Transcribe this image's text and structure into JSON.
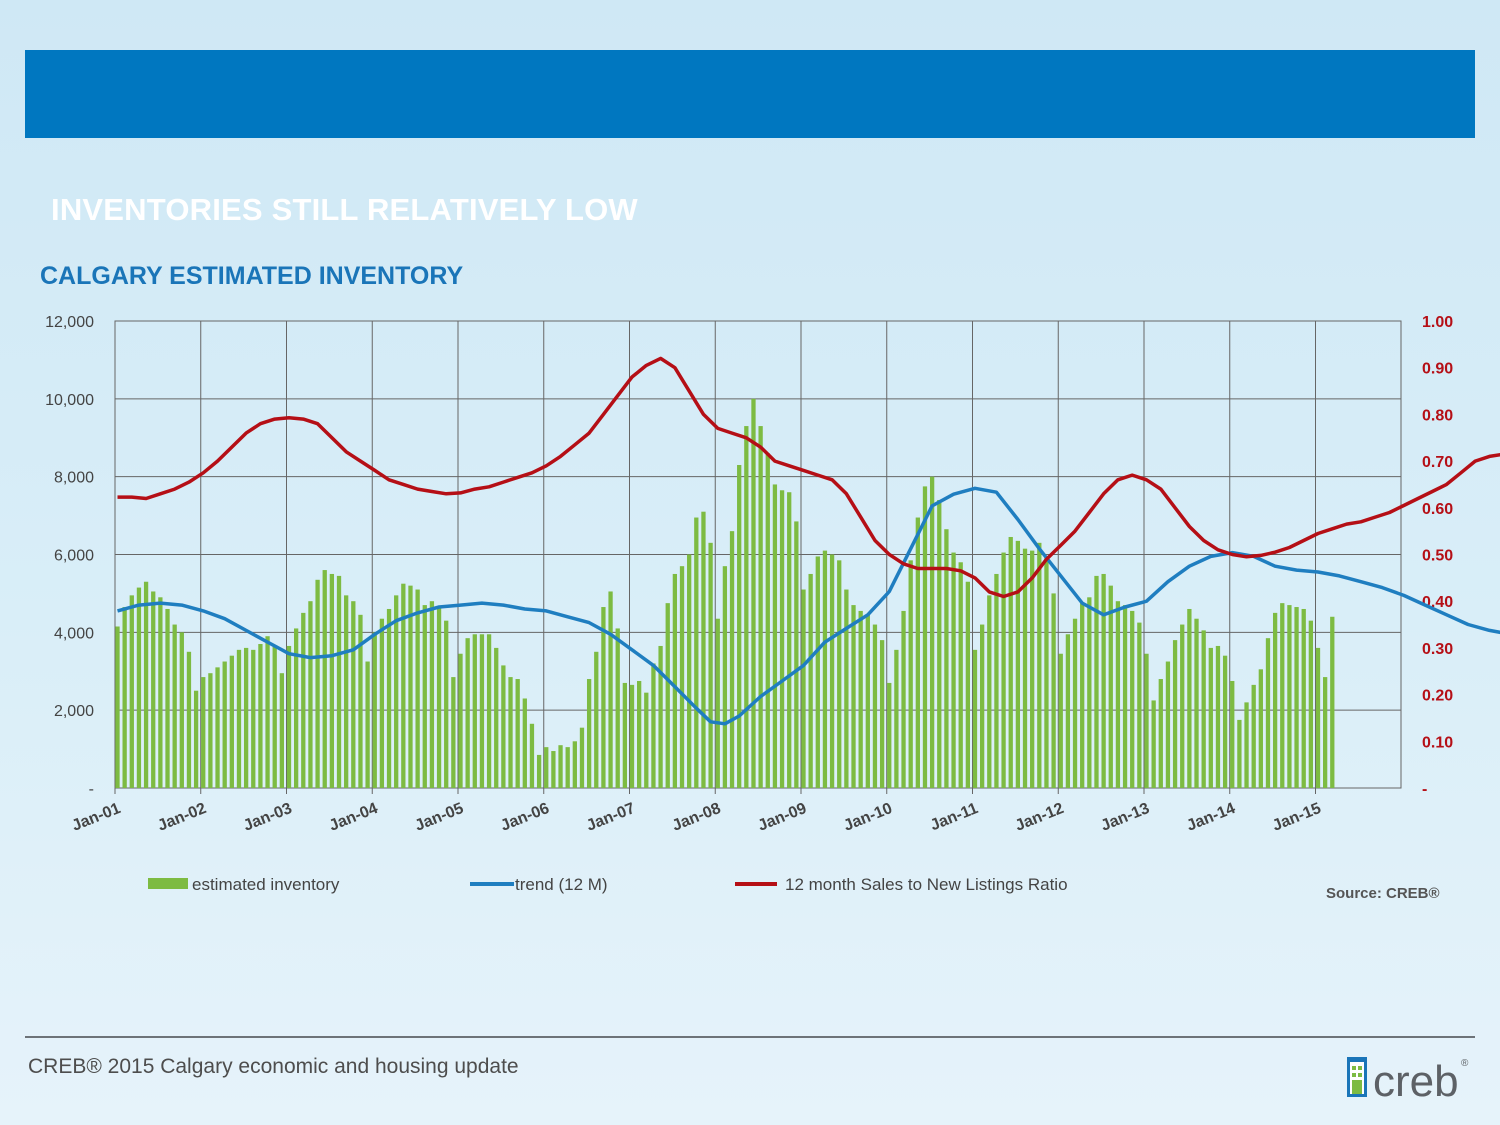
{
  "header": {
    "slide_title": "INVENTORIES STILL RELATIVELY LOW",
    "chart_title": "CALGARY ESTIMATED INVENTORY"
  },
  "footer": {
    "text": "CREB® 2015 Calgary economic and housing update",
    "source": "Source: CREB®",
    "logo_text": "creb",
    "logo_mark": "®"
  },
  "colors": {
    "band": "#0077c0",
    "bars": "#7dbb42",
    "trend": "#1f7ec0",
    "ratio": "#b50f16"
  },
  "chart_data": {
    "type": "bar",
    "title": "CALGARY ESTIMATED INVENTORY",
    "x_tick_labels": [
      "Jan-01",
      "Jan-02",
      "Jan-03",
      "Jan-04",
      "Jan-05",
      "Jan-06",
      "Jan-07",
      "Jan-08",
      "Jan-09",
      "Jan-10",
      "Jan-11",
      "Jan-12",
      "Jan-13",
      "Jan-14",
      "Jan-15"
    ],
    "y_left": {
      "range": [
        0,
        12000
      ],
      "tick_values": [
        0,
        2000,
        4000,
        6000,
        8000,
        10000,
        12000
      ],
      "tick_labels": [
        "-",
        "2,000",
        "4,000",
        "6,000",
        "8,000",
        "10,000",
        "12,000"
      ]
    },
    "y_right": {
      "range": [
        0,
        1.0
      ],
      "tick_values": [
        0,
        0.1,
        0.2,
        0.3,
        0.4,
        0.5,
        0.6,
        0.7,
        0.8,
        0.9,
        1.0
      ],
      "tick_labels": [
        "-",
        "0.10",
        "0.20",
        "0.30",
        "0.40",
        "0.50",
        "0.60",
        "0.70",
        "0.80",
        "0.90",
        "1.00"
      ]
    },
    "grid": true,
    "legend_position": "bottom",
    "series": [
      {
        "name": "estimated inventory",
        "type": "bar",
        "axis": "left",
        "values": [
          4150,
          4650,
          4950,
          5150,
          5300,
          5050,
          4900,
          4600,
          4200,
          4000,
          3500,
          2500,
          2850,
          2950,
          3100,
          3250,
          3400,
          3550,
          3600,
          3550,
          3700,
          3900,
          3650,
          2950,
          3650,
          4100,
          4500,
          4800,
          5350,
          5600,
          5500,
          5450,
          4950,
          4800,
          4450,
          3250,
          4000,
          4350,
          4600,
          4950,
          5250,
          5200,
          5100,
          4700,
          4800,
          4650,
          4300,
          2850,
          3450,
          3850,
          3950,
          3950,
          3950,
          3600,
          3150,
          2850,
          2800,
          2300,
          1650,
          850,
          1050,
          950,
          1100,
          1050,
          1200,
          1550,
          2800,
          3500,
          4650,
          5050,
          4100,
          2700,
          2650,
          2750,
          2450,
          3200,
          3650,
          4750,
          5500,
          5700,
          6000,
          6950,
          7100,
          6300,
          4350,
          5700,
          6600,
          8300,
          9300,
          10000,
          9300,
          8600,
          7800,
          7650,
          7600,
          6850,
          5100,
          5500,
          5950,
          6100,
          6000,
          5850,
          5100,
          4700,
          4550,
          4450,
          4200,
          3800,
          2700,
          3550,
          4550,
          5850,
          6950,
          7750,
          8000,
          7400,
          6650,
          6050,
          5800,
          5300,
          3550,
          4200,
          4950,
          5500,
          6050,
          6450,
          6350,
          6150,
          6100,
          6300,
          5950,
          5000,
          3450,
          3950,
          4350,
          4750,
          4900,
          5450,
          5500,
          5200,
          4800,
          4700,
          4550,
          4250,
          3450,
          2250,
          2800,
          3250,
          3800,
          4200,
          4600,
          4350,
          4050,
          3600,
          3650,
          3400,
          2750,
          1750,
          2200,
          2650,
          3050,
          3850,
          4500,
          4750,
          4700,
          4650,
          4600,
          4300,
          3600,
          2850,
          4400
        ]
      },
      {
        "name": "trend (12 M)",
        "type": "line",
        "axis": "left",
        "points": [
          [
            0,
            4550
          ],
          [
            3,
            4700
          ],
          [
            6,
            4750
          ],
          [
            9,
            4700
          ],
          [
            12,
            4550
          ],
          [
            15,
            4350
          ],
          [
            18,
            4050
          ],
          [
            21,
            3750
          ],
          [
            24,
            3450
          ],
          [
            27,
            3350
          ],
          [
            30,
            3400
          ],
          [
            33,
            3550
          ],
          [
            36,
            3950
          ],
          [
            39,
            4300
          ],
          [
            42,
            4500
          ],
          [
            45,
            4650
          ],
          [
            48,
            4700
          ],
          [
            51,
            4750
          ],
          [
            54,
            4700
          ],
          [
            57,
            4600
          ],
          [
            60,
            4550
          ],
          [
            63,
            4400
          ],
          [
            66,
            4250
          ],
          [
            69,
            3950
          ],
          [
            72,
            3550
          ],
          [
            75,
            3150
          ],
          [
            78,
            2600
          ],
          [
            81,
            2050
          ],
          [
            83,
            1700
          ],
          [
            85,
            1650
          ],
          [
            87,
            1850
          ],
          [
            90,
            2350
          ],
          [
            93,
            2750
          ],
          [
            96,
            3150
          ],
          [
            99,
            3750
          ],
          [
            102,
            4100
          ],
          [
            105,
            4450
          ],
          [
            108,
            5050
          ],
          [
            111,
            6150
          ],
          [
            114,
            7250
          ],
          [
            117,
            7550
          ],
          [
            120,
            7700
          ],
          [
            123,
            7600
          ],
          [
            126,
            6900
          ],
          [
            129,
            6150
          ],
          [
            132,
            5450
          ],
          [
            135,
            4750
          ],
          [
            138,
            4450
          ],
          [
            141,
            4650
          ],
          [
            144,
            4800
          ],
          [
            147,
            5300
          ],
          [
            150,
            5700
          ],
          [
            153,
            5950
          ],
          [
            156,
            6050
          ],
          [
            159,
            5950
          ],
          [
            162,
            5700
          ],
          [
            165,
            5600
          ],
          [
            168,
            5550
          ],
          [
            171,
            5450
          ],
          [
            174,
            5300
          ],
          [
            177,
            5150
          ],
          [
            180,
            4950
          ],
          [
            183,
            4700
          ],
          [
            186,
            4450
          ],
          [
            189,
            4200
          ],
          [
            192,
            4050
          ],
          [
            195,
            3950
          ],
          [
            198,
            3850
          ],
          [
            201,
            3700
          ],
          [
            204,
            3500
          ],
          [
            207,
            3350
          ],
          [
            210,
            3300
          ],
          [
            213,
            3300
          ],
          [
            216,
            3300
          ],
          [
            219,
            3450
          ],
          [
            222,
            3650
          ],
          [
            225,
            3950
          ],
          [
            228,
            4250
          ],
          [
            231,
            4550
          ],
          [
            234,
            4950
          ],
          [
            237,
            5000
          ],
          [
            240,
            4000
          ]
        ]
      },
      {
        "name": "12 month Sales to New Listings Ratio",
        "type": "line",
        "axis": "right",
        "points": [
          [
            0,
            0.623
          ],
          [
            2,
            0.623
          ],
          [
            4,
            0.62
          ],
          [
            6,
            0.63
          ],
          [
            8,
            0.64
          ],
          [
            10,
            0.655
          ],
          [
            12,
            0.675
          ],
          [
            14,
            0.7
          ],
          [
            16,
            0.73
          ],
          [
            18,
            0.76
          ],
          [
            20,
            0.78
          ],
          [
            22,
            0.79
          ],
          [
            24,
            0.793
          ],
          [
            26,
            0.79
          ],
          [
            28,
            0.78
          ],
          [
            30,
            0.75
          ],
          [
            32,
            0.72
          ],
          [
            34,
            0.7
          ],
          [
            36,
            0.68
          ],
          [
            38,
            0.66
          ],
          [
            40,
            0.65
          ],
          [
            42,
            0.64
          ],
          [
            44,
            0.635
          ],
          [
            46,
            0.63
          ],
          [
            48,
            0.632
          ],
          [
            50,
            0.64
          ],
          [
            52,
            0.645
          ],
          [
            54,
            0.655
          ],
          [
            56,
            0.665
          ],
          [
            58,
            0.675
          ],
          [
            60,
            0.69
          ],
          [
            62,
            0.71
          ],
          [
            64,
            0.735
          ],
          [
            66,
            0.76
          ],
          [
            68,
            0.8
          ],
          [
            70,
            0.84
          ],
          [
            72,
            0.88
          ],
          [
            74,
            0.905
          ],
          [
            76,
            0.92
          ],
          [
            78,
            0.9
          ],
          [
            80,
            0.85
          ],
          [
            82,
            0.8
          ],
          [
            84,
            0.77
          ],
          [
            86,
            0.76
          ],
          [
            88,
            0.75
          ],
          [
            90,
            0.73
          ],
          [
            92,
            0.7
          ],
          [
            94,
            0.69
          ],
          [
            96,
            0.68
          ],
          [
            98,
            0.67
          ],
          [
            100,
            0.66
          ],
          [
            102,
            0.63
          ],
          [
            104,
            0.58
          ],
          [
            106,
            0.53
          ],
          [
            108,
            0.5
          ],
          [
            110,
            0.48
          ],
          [
            112,
            0.47
          ],
          [
            114,
            0.47
          ],
          [
            116,
            0.47
          ],
          [
            118,
            0.465
          ],
          [
            120,
            0.45
          ],
          [
            122,
            0.42
          ],
          [
            124,
            0.41
          ],
          [
            126,
            0.42
          ],
          [
            128,
            0.45
          ],
          [
            130,
            0.49
          ],
          [
            132,
            0.52
          ],
          [
            134,
            0.55
          ],
          [
            136,
            0.59
          ],
          [
            138,
            0.63
          ],
          [
            140,
            0.66
          ],
          [
            142,
            0.67
          ],
          [
            144,
            0.66
          ],
          [
            146,
            0.64
          ],
          [
            148,
            0.6
          ],
          [
            150,
            0.56
          ],
          [
            152,
            0.53
          ],
          [
            154,
            0.51
          ],
          [
            156,
            0.5
          ],
          [
            158,
            0.495
          ],
          [
            160,
            0.498
          ],
          [
            162,
            0.505
          ],
          [
            164,
            0.515
          ],
          [
            166,
            0.53
          ],
          [
            168,
            0.545
          ],
          [
            170,
            0.555
          ],
          [
            172,
            0.565
          ],
          [
            174,
            0.57
          ],
          [
            176,
            0.58
          ],
          [
            178,
            0.59
          ],
          [
            180,
            0.605
          ],
          [
            182,
            0.62
          ],
          [
            184,
            0.635
          ],
          [
            186,
            0.65
          ],
          [
            188,
            0.675
          ],
          [
            190,
            0.7
          ],
          [
            192,
            0.71
          ],
          [
            194,
            0.715
          ],
          [
            196,
            0.72
          ],
          [
            198,
            0.73
          ],
          [
            200,
            0.745
          ],
          [
            202,
            0.755
          ],
          [
            204,
            0.76
          ],
          [
            206,
            0.765
          ],
          [
            208,
            0.77
          ],
          [
            210,
            0.775
          ],
          [
            212,
            0.775
          ],
          [
            214,
            0.77
          ],
          [
            216,
            0.765
          ],
          [
            218,
            0.76
          ],
          [
            220,
            0.75
          ],
          [
            222,
            0.742
          ],
          [
            224,
            0.735
          ],
          [
            226,
            0.72
          ],
          [
            228,
            0.7
          ],
          [
            230,
            0.682
          ]
        ]
      }
    ]
  }
}
